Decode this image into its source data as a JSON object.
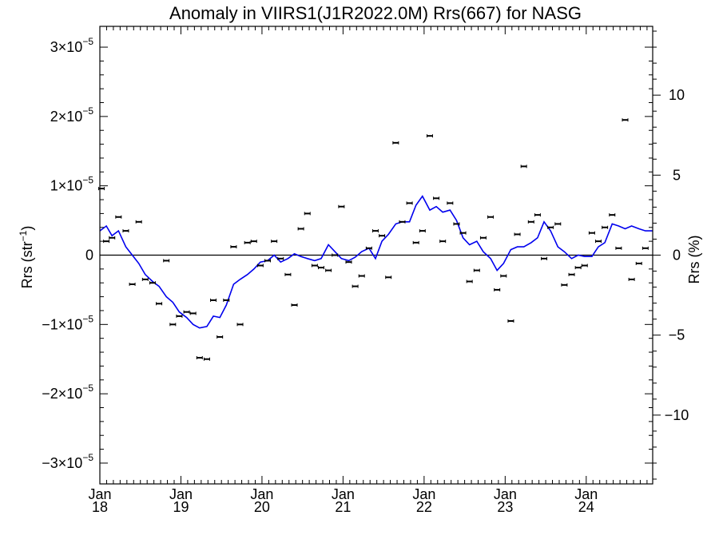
{
  "chart_data": {
    "type": "scatter",
    "title": "Anomaly in VIIRS1(J1R2022.0M) Rrs(667) for NASG",
    "ylabel": "Rrs (str",
    "ylabel_sup": "−1",
    "ylabel_close": ")",
    "y2label": "Rrs (%)",
    "ylim": [
      -3.3e-05,
      3.3e-05
    ],
    "y2lim": [
      -14.3,
      14.3
    ],
    "xlim": [
      2018.0,
      2024.82
    ],
    "grid": false,
    "legend": "none",
    "y_ticks": [
      {
        "value": 3e-05,
        "mant": "3×10",
        "exp": "−5"
      },
      {
        "value": 2e-05,
        "mant": "2×10",
        "exp": "−5"
      },
      {
        "value": 1e-05,
        "mant": "1×10",
        "exp": "−5"
      },
      {
        "value": 0,
        "mant": "0",
        "exp": ""
      },
      {
        "value": -1e-05,
        "mant": "−1×10",
        "exp": "−5"
      },
      {
        "value": -2e-05,
        "mant": "−2×10",
        "exp": "−5"
      },
      {
        "value": -3e-05,
        "mant": "−3×10",
        "exp": "−5"
      }
    ],
    "y2_ticks": [
      {
        "value": 10,
        "label": "10"
      },
      {
        "value": 5,
        "label": "5"
      },
      {
        "value": 0,
        "label": "0"
      },
      {
        "value": -5,
        "label": "−5"
      },
      {
        "value": -10,
        "label": "−10"
      }
    ],
    "x_ticks": [
      {
        "value": 2018,
        "month": "Jan",
        "year": "18"
      },
      {
        "value": 2019,
        "month": "Jan",
        "year": "19"
      },
      {
        "value": 2020,
        "month": "Jan",
        "year": "20"
      },
      {
        "value": 2021,
        "month": "Jan",
        "year": "21"
      },
      {
        "value": 2022,
        "month": "Jan",
        "year": "22"
      },
      {
        "value": 2023,
        "month": "Jan",
        "year": "23"
      },
      {
        "value": 2024,
        "month": "Jan",
        "year": "24"
      }
    ],
    "colors": {
      "line": "#0000ee",
      "points": "#000000",
      "zero_line": "#000000"
    },
    "series": [
      {
        "type": "scatter",
        "x": [
          2018.02,
          2018.08,
          2018.15,
          2018.23,
          2018.32,
          2018.4,
          2018.48,
          2018.56,
          2018.65,
          2018.73,
          2018.82,
          2018.9,
          2018.98,
          2019.07,
          2019.15,
          2019.23,
          2019.32,
          2019.4,
          2019.48,
          2019.56,
          2019.65,
          2019.73,
          2019.82,
          2019.9,
          2019.98,
          2020.07,
          2020.15,
          2020.23,
          2020.32,
          2020.4,
          2020.48,
          2020.56,
          2020.65,
          2020.73,
          2020.82,
          2020.9,
          2020.98,
          2021.07,
          2021.15,
          2021.23,
          2021.32,
          2021.4,
          2021.48,
          2021.56,
          2021.65,
          2021.73,
          2021.82,
          2021.9,
          2021.98,
          2022.07,
          2022.15,
          2022.23,
          2022.32,
          2022.4,
          2022.48,
          2022.56,
          2022.65,
          2022.73,
          2022.82,
          2022.9,
          2022.98,
          2023.07,
          2023.15,
          2023.23,
          2023.32,
          2023.4,
          2023.48,
          2023.56,
          2023.65,
          2023.73,
          2023.82,
          2023.9,
          2023.98,
          2024.07,
          2024.15,
          2024.23,
          2024.32,
          2024.4,
          2024.48,
          2024.56,
          2024.65,
          2024.73
        ],
        "y": [
          9.6e-06,
          2e-06,
          2.5e-06,
          5.5e-06,
          3.5e-06,
          -4.2e-06,
          4.8e-06,
          -3.5e-06,
          -4e-06,
          -7e-06,
          -8e-07,
          -1e-05,
          -8.8e-06,
          -8.2e-06,
          -8.4e-06,
          -1.48e-05,
          -1.5e-05,
          -6.5e-06,
          -1.18e-05,
          -6.5e-06,
          1.2e-06,
          -1e-05,
          1.8e-06,
          2e-06,
          -1.5e-06,
          -8e-07,
          2e-06,
          -5e-07,
          -2.8e-06,
          -7.2e-06,
          3.8e-06,
          6e-06,
          -1.5e-06,
          -1.8e-06,
          -2.2e-06,
          0.0,
          7e-06,
          -1e-06,
          -4.5e-06,
          -3e-06,
          1e-06,
          3.5e-06,
          2.8e-06,
          -3.2e-06,
          1.62e-05,
          4.8e-06,
          7.5e-06,
          1.8e-06,
          3.5e-06,
          1.72e-05,
          8.2e-06,
          2e-06,
          7.5e-06,
          4.5e-06,
          3.2e-06,
          -3.8e-06,
          -2.2e-06,
          2.5e-06,
          5.5e-06,
          -5e-06,
          -3e-06,
          -9.5e-06,
          3e-06,
          1.28e-05,
          4.8e-06,
          5.8e-06,
          -5e-07,
          4e-06,
          4.5e-06,
          -4.3e-06,
          -2.8e-06,
          -1.8e-06,
          -1.5e-06,
          3.2e-06,
          2e-06,
          4e-06,
          5.8e-06,
          1e-06,
          1.95e-05,
          -3.5e-06,
          -1.2e-06,
          1e-06
        ]
      },
      {
        "type": "line",
        "x": [
          2018.0,
          2018.08,
          2018.15,
          2018.23,
          2018.32,
          2018.4,
          2018.48,
          2018.56,
          2018.65,
          2018.73,
          2018.82,
          2018.9,
          2018.98,
          2019.07,
          2019.15,
          2019.23,
          2019.32,
          2019.4,
          2019.48,
          2019.56,
          2019.65,
          2019.73,
          2019.82,
          2019.9,
          2019.98,
          2020.07,
          2020.15,
          2020.23,
          2020.32,
          2020.4,
          2020.48,
          2020.56,
          2020.65,
          2020.73,
          2020.82,
          2020.9,
          2020.98,
          2021.07,
          2021.15,
          2021.23,
          2021.32,
          2021.4,
          2021.48,
          2021.56,
          2021.65,
          2021.73,
          2021.82,
          2021.9,
          2021.98,
          2022.07,
          2022.15,
          2022.23,
          2022.32,
          2022.4,
          2022.48,
          2022.56,
          2022.65,
          2022.73,
          2022.82,
          2022.9,
          2022.98,
          2023.07,
          2023.15,
          2023.23,
          2023.32,
          2023.4,
          2023.48,
          2023.56,
          2023.65,
          2023.73,
          2023.82,
          2023.9,
          2023.98,
          2024.07,
          2024.15,
          2024.23,
          2024.32,
          2024.4,
          2024.48,
          2024.56,
          2024.65,
          2024.73,
          2024.82
        ],
        "y": [
          3.5e-06,
          4.2e-06,
          2.8e-06,
          3.5e-06,
          1.2e-06,
          0.0,
          -1.2e-06,
          -2.8e-06,
          -3.8e-06,
          -4.5e-06,
          -6e-06,
          -6.8e-06,
          -8.2e-06,
          -9e-06,
          -1e-05,
          -1.05e-05,
          -1.03e-05,
          -8.8e-06,
          -9e-06,
          -7.2e-06,
          -4.2e-06,
          -3.5e-06,
          -2.8e-06,
          -2e-06,
          -1e-06,
          -8e-07,
          0.0,
          -1e-06,
          -5e-07,
          2e-07,
          -2e-07,
          -5e-07,
          -8e-07,
          -5e-07,
          1.5e-06,
          5e-07,
          -5e-07,
          -8e-07,
          -3e-07,
          5e-07,
          1e-06,
          -5e-07,
          2e-06,
          3e-06,
          4.5e-06,
          4.8e-06,
          4.8e-06,
          7.2e-06,
          8.5e-06,
          6.5e-06,
          7e-06,
          6.2e-06,
          6.5e-06,
          5e-06,
          2.5e-06,
          1.5e-06,
          2e-06,
          5e-07,
          -5e-07,
          -2.2e-06,
          -1.2e-06,
          8e-07,
          1.2e-06,
          1.2e-06,
          1.8e-06,
          2.5e-06,
          4.8e-06,
          3.5e-06,
          1.2e-06,
          5e-07,
          -5e-07,
          0.0,
          -2e-07,
          -2e-07,
          1.2e-06,
          1.8e-06,
          4.5e-06,
          4.2e-06,
          3.8e-06,
          4.2e-06,
          3.8e-06,
          3.5e-06,
          3.5e-06
        ]
      }
    ]
  }
}
